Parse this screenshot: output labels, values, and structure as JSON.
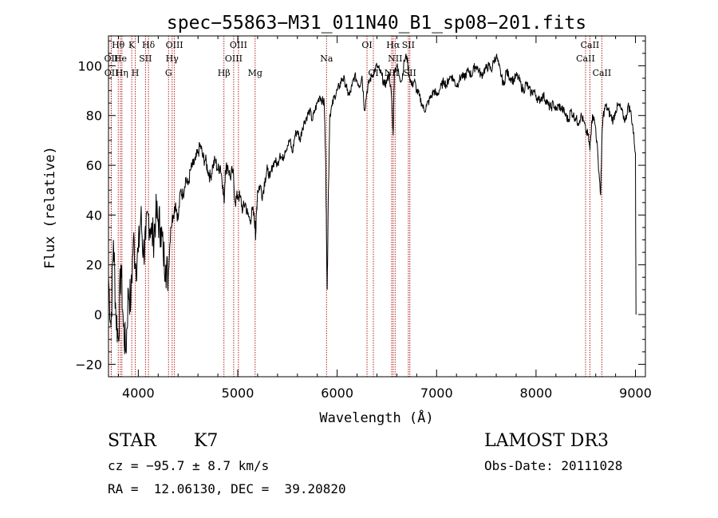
{
  "chart_data": {
    "type": "line",
    "title": "spec−55863−M31_011N40_B1_sp08−201.fits",
    "xlabel": "Wavelength (Å)",
    "ylabel": "Flux (relative)",
    "xlim": [
      3700,
      9100
    ],
    "ylim": [
      -25,
      112
    ],
    "xticks": [
      4000,
      5000,
      6000,
      7000,
      8000,
      9000
    ],
    "yticks": [
      -20,
      0,
      20,
      40,
      60,
      80,
      100
    ],
    "series": [
      {
        "name": "flux",
        "x": [
          3700,
          3725,
          3750,
          3775,
          3800,
          3825,
          3850,
          3875,
          3900,
          3925,
          3950,
          3975,
          4000,
          4025,
          4050,
          4075,
          4100,
          4125,
          4150,
          4175,
          4200,
          4225,
          4250,
          4275,
          4300,
          4325,
          4350,
          4375,
          4400,
          4425,
          4450,
          4475,
          4500,
          4525,
          4550,
          4575,
          4600,
          4625,
          4650,
          4675,
          4700,
          4725,
          4750,
          4775,
          4800,
          4825,
          4850,
          4862,
          4875,
          4900,
          4925,
          4950,
          4975,
          5000,
          5025,
          5050,
          5075,
          5100,
          5125,
          5150,
          5175,
          5180,
          5190,
          5200,
          5225,
          5250,
          5275,
          5300,
          5325,
          5350,
          5375,
          5400,
          5425,
          5450,
          5475,
          5500,
          5525,
          5550,
          5575,
          5600,
          5625,
          5650,
          5675,
          5700,
          5725,
          5750,
          5775,
          5800,
          5825,
          5850,
          5870,
          5885,
          5893,
          5900,
          5910,
          5925,
          5950,
          5975,
          6000,
          6025,
          6050,
          6075,
          6100,
          6125,
          6150,
          6175,
          6200,
          6225,
          6250,
          6275,
          6300,
          6325,
          6350,
          6375,
          6400,
          6425,
          6450,
          6475,
          6500,
          6525,
          6550,
          6563,
          6575,
          6600,
          6625,
          6650,
          6675,
          6700,
          6725,
          6750,
          6775,
          6800,
          6825,
          6850,
          6875,
          6900,
          6925,
          6950,
          6975,
          7000,
          7025,
          7050,
          7075,
          7100,
          7125,
          7150,
          7175,
          7200,
          7225,
          7250,
          7275,
          7300,
          7325,
          7350,
          7375,
          7400,
          7425,
          7450,
          7475,
          7500,
          7525,
          7550,
          7575,
          7600,
          7625,
          7650,
          7675,
          7700,
          7725,
          7750,
          7775,
          7800,
          7825,
          7850,
          7875,
          7900,
          7925,
          7950,
          7975,
          8000,
          8025,
          8050,
          8075,
          8100,
          8125,
          8150,
          8175,
          8200,
          8225,
          8250,
          8275,
          8300,
          8325,
          8350,
          8375,
          8400,
          8425,
          8450,
          8475,
          8500,
          8525,
          8542,
          8560,
          8575,
          8600,
          8625,
          8650,
          8662,
          8675,
          8700,
          8725,
          8750,
          8775,
          8800,
          8825,
          8850,
          8875,
          8900,
          8925,
          8950,
          8975,
          9000,
          9005
        ],
        "values": [
          15,
          -5,
          30,
          0,
          -10,
          20,
          -5,
          -15,
          10,
          5,
          30,
          20,
          25,
          40,
          25,
          30,
          40,
          35,
          30,
          40,
          38,
          35,
          25,
          20,
          15,
          35,
          40,
          45,
          38,
          50,
          48,
          55,
          52,
          58,
          60,
          62,
          65,
          68,
          63,
          62,
          58,
          55,
          60,
          62,
          58,
          60,
          52,
          45,
          58,
          60,
          55,
          58,
          45,
          48,
          47,
          42,
          45,
          40,
          38,
          42,
          36,
          32,
          42,
          50,
          52,
          48,
          55,
          58,
          55,
          60,
          62,
          60,
          65,
          62,
          66,
          68,
          70,
          65,
          72,
          74,
          70,
          75,
          78,
          80,
          82,
          78,
          82,
          85,
          88,
          86,
          85,
          60,
          30,
          10,
          45,
          80,
          84,
          88,
          90,
          92,
          95,
          94,
          90,
          88,
          92,
          96,
          94,
          92,
          96,
          82,
          90,
          94,
          96,
          98,
          100,
          98,
          96,
          92,
          94,
          97,
          85,
          72,
          98,
          100,
          96,
          94,
          102,
          104,
          96,
          92,
          94,
          90,
          88,
          85,
          82,
          84,
          86,
          88,
          90,
          88,
          90,
          92,
          94,
          92,
          95,
          96,
          94,
          92,
          94,
          96,
          95,
          97,
          98,
          96,
          99,
          100,
          98,
          96,
          98,
          99,
          100,
          98,
          102,
          104,
          100,
          96,
          92,
          98,
          96,
          95,
          94,
          96,
          95,
          92,
          90,
          93,
          91,
          89,
          90,
          88,
          86,
          87,
          88,
          86,
          84,
          83,
          85,
          82,
          84,
          83,
          82,
          80,
          78,
          82,
          80,
          79,
          77,
          80,
          78,
          74,
          72,
          66,
          78,
          80,
          75,
          62,
          48,
          70,
          80,
          84,
          82,
          80,
          78,
          82,
          84,
          83,
          80,
          78,
          84,
          82,
          75,
          65,
          0
        ]
      }
    ],
    "line_markers": [
      {
        "label": "Hθ",
        "wavelength": 3798,
        "row": 1
      },
      {
        "label": "OII",
        "wavelength": 3727,
        "row": 2
      },
      {
        "label": "OII",
        "wavelength": 3729,
        "row": 3
      },
      {
        "label": "He",
        "wavelength": 3820,
        "row": 2
      },
      {
        "label": "Hη",
        "wavelength": 3835,
        "row": 3
      },
      {
        "label": "K",
        "wavelength": 3934,
        "row": 1
      },
      {
        "label": "H",
        "wavelength": 3969,
        "row": 3
      },
      {
        "label": "SII",
        "wavelength": 4072,
        "row": 2
      },
      {
        "label": "Hδ",
        "wavelength": 4102,
        "row": 1
      },
      {
        "label": "OIII",
        "wavelength": 4363,
        "row": 1
      },
      {
        "label": "Hγ",
        "wavelength": 4340,
        "row": 2
      },
      {
        "label": "G",
        "wavelength": 4304,
        "row": 3
      },
      {
        "label": "Hβ",
        "wavelength": 4861,
        "row": 3
      },
      {
        "label": "OIII",
        "wavelength": 5007,
        "row": 1
      },
      {
        "label": "OIII",
        "wavelength": 4959,
        "row": 2
      },
      {
        "label": "Mg",
        "wavelength": 5175,
        "row": 3
      },
      {
        "label": "Na",
        "wavelength": 5893,
        "row": 2
      },
      {
        "label": "OI",
        "wavelength": 6300,
        "row": 1
      },
      {
        "label": "OI",
        "wavelength": 6364,
        "row": 3
      },
      {
        "label": "NII",
        "wavelength": 6548,
        "row": 3
      },
      {
        "label": "Hα",
        "wavelength": 6563,
        "row": 1
      },
      {
        "label": "NII",
        "wavelength": 6583,
        "row": 2
      },
      {
        "label": "SII",
        "wavelength": 6716,
        "row": 1
      },
      {
        "label": "SII",
        "wavelength": 6731,
        "row": 3
      },
      {
        "label": "CaII",
        "wavelength": 8498,
        "row": 2
      },
      {
        "label": "CaII",
        "wavelength": 8542,
        "row": 1
      },
      {
        "label": "CaII",
        "wavelength": 8662,
        "row": 3
      }
    ],
    "marker_color": "#b22222"
  },
  "info": {
    "object_class": "STAR",
    "subclass": "K7",
    "survey": "LAMOST DR3",
    "cz": "cz = −95.7 ± 8.7 km/s",
    "obs_date": "Obs-Date: 20111028",
    "coords": "RA =  12.06130, DEC =  39.20820"
  }
}
